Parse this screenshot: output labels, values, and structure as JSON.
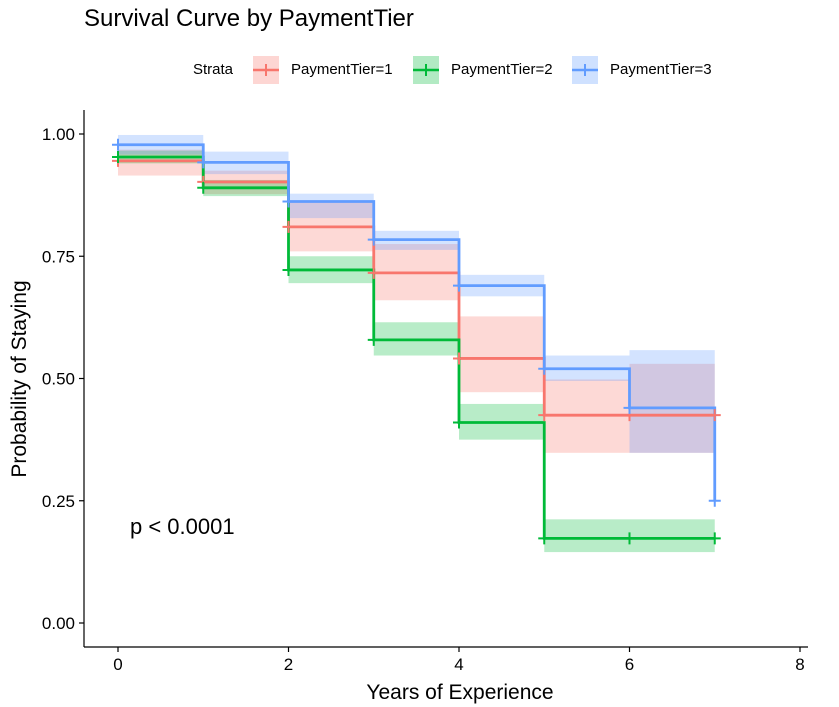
{
  "chart_data": {
    "type": "line",
    "subtype": "kaplan-meier step survival curve with confidence bands",
    "title": "Survival Curve by PaymentTier",
    "xlabel": "Years of Experience",
    "ylabel": "Probability of Staying",
    "xlim": [
      0,
      8
    ],
    "ylim": [
      0,
      1
    ],
    "x_ticks": [
      0,
      2,
      4,
      6,
      8
    ],
    "y_ticks": [
      "0.00",
      "0.25",
      "0.50",
      "0.75",
      "1.00"
    ],
    "legend": {
      "title": "Strata",
      "placement": "top"
    },
    "annotation": "p < 0.0001",
    "grid": false,
    "series": [
      {
        "name": "PaymentTier=1",
        "color": "#F8766D",
        "band_color": "#F8766D",
        "steps": [
          {
            "x0": 0,
            "x1": 1,
            "y": 0.945,
            "lo": 0.915,
            "hi": 0.968
          },
          {
            "x0": 1,
            "x1": 2,
            "y": 0.902,
            "lo": 0.877,
            "hi": 0.925
          },
          {
            "x0": 2,
            "x1": 3,
            "y": 0.81,
            "lo": 0.76,
            "hi": 0.86
          },
          {
            "x0": 3,
            "x1": 4,
            "y": 0.716,
            "lo": 0.66,
            "hi": 0.775
          },
          {
            "x0": 4,
            "x1": 5,
            "y": 0.541,
            "lo": 0.472,
            "hi": 0.627
          },
          {
            "x0": 5,
            "x1": 6,
            "y": 0.425,
            "lo": 0.348,
            "hi": 0.498
          },
          {
            "x0": 6,
            "x1": 7,
            "y": 0.425,
            "lo": 0.348,
            "hi": 0.53
          }
        ],
        "censor_points": [
          {
            "x": 0,
            "y": 0.945
          },
          {
            "x": 1,
            "y": 0.902
          },
          {
            "x": 2,
            "y": 0.81
          },
          {
            "x": 3,
            "y": 0.716
          },
          {
            "x": 4,
            "y": 0.541
          },
          {
            "x": 5,
            "y": 0.425
          },
          {
            "x": 6,
            "y": 0.425
          },
          {
            "x": 7,
            "y": 0.425
          }
        ]
      },
      {
        "name": "PaymentTier=2",
        "color": "#00BA38",
        "band_color": "#00BA38",
        "steps": [
          {
            "x0": 0,
            "x1": 1,
            "y": 0.953,
            "lo": 0.94,
            "hi": 0.966
          },
          {
            "x0": 1,
            "x1": 2,
            "y": 0.89,
            "lo": 0.873,
            "hi": 0.906
          },
          {
            "x0": 2,
            "x1": 3,
            "y": 0.722,
            "lo": 0.695,
            "hi": 0.75
          },
          {
            "x0": 3,
            "x1": 4,
            "y": 0.579,
            "lo": 0.547,
            "hi": 0.615
          },
          {
            "x0": 4,
            "x1": 5,
            "y": 0.41,
            "lo": 0.375,
            "hi": 0.448
          },
          {
            "x0": 5,
            "x1": 6,
            "y": 0.173,
            "lo": 0.145,
            "hi": 0.212
          },
          {
            "x0": 6,
            "x1": 7,
            "y": 0.173,
            "lo": 0.145,
            "hi": 0.212
          }
        ],
        "censor_points": [
          {
            "x": 0,
            "y": 0.953
          },
          {
            "x": 1,
            "y": 0.89
          },
          {
            "x": 2,
            "y": 0.722
          },
          {
            "x": 3,
            "y": 0.579
          },
          {
            "x": 4,
            "y": 0.41
          },
          {
            "x": 5,
            "y": 0.173
          },
          {
            "x": 6,
            "y": 0.173
          },
          {
            "x": 7,
            "y": 0.173
          }
        ]
      },
      {
        "name": "PaymentTier=3",
        "color": "#619CFF",
        "band_color": "#619CFF",
        "steps": [
          {
            "x0": 0,
            "x1": 1,
            "y": 0.978,
            "lo": 0.958,
            "hi": 0.998
          },
          {
            "x0": 1,
            "x1": 2,
            "y": 0.942,
            "lo": 0.918,
            "hi": 0.964
          },
          {
            "x0": 2,
            "x1": 3,
            "y": 0.862,
            "lo": 0.828,
            "hi": 0.878
          },
          {
            "x0": 3,
            "x1": 4,
            "y": 0.784,
            "lo": 0.763,
            "hi": 0.802
          },
          {
            "x0": 4,
            "x1": 5,
            "y": 0.69,
            "lo": 0.668,
            "hi": 0.712
          },
          {
            "x0": 5,
            "x1": 6,
            "y": 0.52,
            "lo": 0.495,
            "hi": 0.547
          },
          {
            "x0": 6,
            "x1": 7,
            "y": 0.44,
            "lo": 0.348,
            "hi": 0.558
          }
        ],
        "final_drop": {
          "x": 7,
          "y": 0.25
        },
        "censor_points": [
          {
            "x": 0,
            "y": 0.978
          },
          {
            "x": 1,
            "y": 0.942
          },
          {
            "x": 2,
            "y": 0.862
          },
          {
            "x": 3,
            "y": 0.784
          },
          {
            "x": 4,
            "y": 0.69
          },
          {
            "x": 5,
            "y": 0.52
          },
          {
            "x": 6,
            "y": 0.44
          },
          {
            "x": 7,
            "y": 0.25
          }
        ]
      }
    ]
  }
}
